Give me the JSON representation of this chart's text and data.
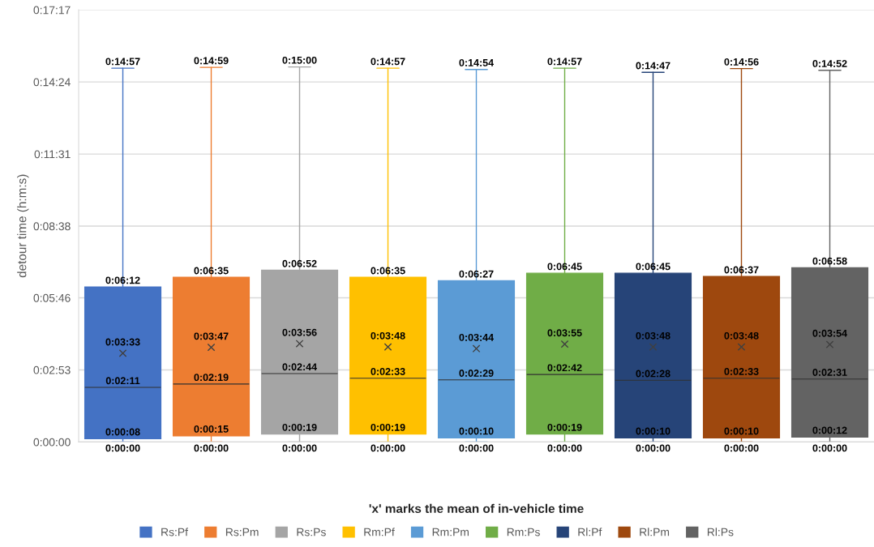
{
  "chart_data": {
    "type": "box",
    "ylabel": "detour time (h:m:s)",
    "xlabel": "'x' marks the mean of in-vehicle time",
    "categories": [
      null
    ],
    "ylim": [
      0,
      1037
    ],
    "yticks": [
      {
        "value": 0,
        "label": "0:00:00"
      },
      {
        "value": 173,
        "label": "0:02:53"
      },
      {
        "value": 346,
        "label": "0:05:46"
      },
      {
        "value": 518,
        "label": "0:08:38"
      },
      {
        "value": 691,
        "label": "0:11:31"
      },
      {
        "value": 864,
        "label": "0:14:24"
      },
      {
        "value": 1037,
        "label": "0:17:17"
      }
    ],
    "grid": "y",
    "legend": "bottom",
    "tick_labels": "y",
    "marker": "cross",
    "series": [
      {
        "name": "Rs:Pf",
        "color": "#4472c4",
        "boxes": [
          {
            "low": 0,
            "q1": 8,
            "median": 131,
            "q3": 372,
            "high": 897,
            "mean": 213
          }
        ]
      },
      {
        "name": "Rs:Pm",
        "color": "#ed7d31",
        "boxes": [
          {
            "low": 0,
            "q1": 15,
            "median": 139,
            "q3": 395,
            "high": 899,
            "mean": 227
          }
        ]
      },
      {
        "name": "Rs:Ps",
        "color": "#a5a5a5",
        "boxes": [
          {
            "low": 0,
            "q1": 19,
            "median": 164,
            "q3": 412,
            "high": 900,
            "mean": 236
          }
        ]
      },
      {
        "name": "Rm:Pf",
        "color": "#ffc000",
        "boxes": [
          {
            "low": 0,
            "q1": 19,
            "median": 153,
            "q3": 395,
            "high": 897,
            "mean": 228
          }
        ]
      },
      {
        "name": "Rm:Pm",
        "color": "#5b9bd5",
        "boxes": [
          {
            "low": 0,
            "q1": 10,
            "median": 149,
            "q3": 387,
            "high": 894,
            "mean": 224
          }
        ]
      },
      {
        "name": "Rm:Ps",
        "color": "#70ad47",
        "boxes": [
          {
            "low": 0,
            "q1": 19,
            "median": 162,
            "q3": 405,
            "high": 897,
            "mean": 235
          }
        ]
      },
      {
        "name": "Rl:Pf",
        "color": "#264478",
        "boxes": [
          {
            "low": 0,
            "q1": 10,
            "median": 148,
            "q3": 405,
            "high": 887,
            "mean": 228
          }
        ]
      },
      {
        "name": "Rl:Pm",
        "color": "#9e480e",
        "boxes": [
          {
            "low": 0,
            "q1": 10,
            "median": 153,
            "q3": 397,
            "high": 896,
            "mean": 228
          }
        ]
      },
      {
        "name": "Rl:Ps",
        "color": "#636363",
        "boxes": [
          {
            "low": 0,
            "q1": 12,
            "median": 151,
            "q3": 418,
            "high": 892,
            "mean": 234
          }
        ]
      }
    ],
    "annotations": [
      {
        "text": "0:14:57",
        "y": 897
      },
      {
        "text": "0:06:12",
        "y": 372
      },
      "0:03:33",
      {
        "text": "0:02:11",
        "y": 131
      },
      {
        "text": "0:00:08",
        "y": 8
      },
      {
        "text": "0:00:00",
        "y": 0
      },
      {
        "text": "0:14:59",
        "y": 899
      },
      {
        "text": "0:06:35",
        "y": 395
      },
      "0:03:47",
      {
        "text": "0:02:19",
        "y": 139
      },
      {
        "text": "0:00:15",
        "y": 15
      },
      {
        "text": "0:00:00",
        "y": 0
      },
      {
        "text": "0:15:00",
        "y": 900
      },
      {
        "text": "0:06:52",
        "y": 412
      },
      "0:03:56",
      {
        "text": "0:02:44",
        "y": 164
      },
      {
        "text": "0:00:19",
        "y": 19
      },
      {
        "text": "0:00:00",
        "y": 0
      },
      {
        "text": "0:14:57",
        "y": 897
      },
      {
        "text": "0:06:35",
        "y": 395
      },
      "0:03:48",
      {
        "text": "0:02:33",
        "y": 153
      },
      {
        "text": "0:00:19",
        "y": 19
      },
      {
        "text": "0:00:00",
        "y": 0
      },
      {
        "text": "0:14:54",
        "y": 894
      },
      {
        "text": "0:06:27",
        "y": 387
      },
      "0:03:44",
      {
        "text": "0:02:29",
        "y": 149
      },
      {
        "text": "0:00:10",
        "y": 10
      },
      {
        "text": "0:00:00",
        "y": 0
      },
      {
        "text": "0:14:57",
        "y": 897
      },
      {
        "text": "0:06:45",
        "y": 405
      },
      "0:03:55",
      {
        "text": "0:02:42",
        "y": 162
      },
      {
        "text": "0:00:19",
        "y": 19
      },
      {
        "text": "0:00:00",
        "y": 0
      },
      {
        "text": "0:14:47",
        "y": 887
      },
      {
        "text": "0:06:45",
        "y": 405
      },
      "0:03:48",
      {
        "text": "0:02:28",
        "y": 148
      },
      {
        "text": "0:00:10",
        "y": 10
      },
      {
        "text": "0:00:00",
        "y": 0
      },
      {
        "text": "0:14:56",
        "y": 896
      },
      {
        "text": "0:06:37",
        "y": 397
      },
      "0:03:48",
      {
        "text": "0:02:33",
        "y": 153
      },
      {
        "text": "0:00:10",
        "y": 10
      },
      {
        "text": "0:00:00",
        "y": 0
      },
      {
        "text": "0:14:52",
        "y": 892
      },
      {
        "text": "0:06:58",
        "y": 418
      },
      "0:03:54",
      {
        "text": "0:02:31",
        "y": 151
      },
      {
        "text": "0:00:12",
        "y": 12
      },
      {
        "text": "0:00:00",
        "y": 0
      }
    ]
  }
}
